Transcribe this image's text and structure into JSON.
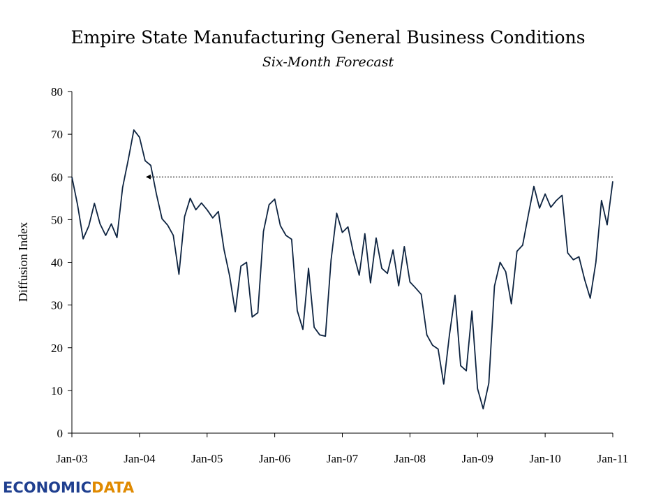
{
  "chart_data": {
    "type": "line",
    "title": "Empire State Manufacturing General Business Conditions",
    "subtitle": "Six-Month Forecast",
    "xlabel": "",
    "ylabel": "Diffusion Index",
    "ylim": [
      0,
      80
    ],
    "yticks": [
      "0",
      "10",
      "20",
      "30",
      "40",
      "50",
      "60",
      "70",
      "80"
    ],
    "xticks": [
      "Jan-03",
      "Jan-04",
      "Jan-05",
      "Jan-06",
      "Jan-07",
      "Jan-08",
      "Jan-09",
      "Jan-10",
      "Jan-11"
    ],
    "grid": false,
    "line_color": "#0d2340",
    "reference_line": {
      "value": 60,
      "from_month": 13,
      "to_month": 96
    },
    "series": [
      {
        "values": [
          60.0,
          53.5,
          45.5,
          48.5,
          53.8,
          49.0,
          46.3,
          49.0,
          45.8,
          57.5,
          64.0,
          71.0,
          69.3,
          63.8,
          62.7,
          56.0,
          50.2,
          48.7,
          46.3,
          37.2,
          50.7,
          55.0,
          52.3,
          53.9,
          52.3,
          50.4,
          51.9,
          43.0,
          36.8,
          28.4,
          39.1,
          40.0,
          27.2,
          28.2,
          47.2,
          53.5,
          54.8,
          48.6,
          46.3,
          45.4,
          28.7,
          24.3,
          38.6,
          24.8,
          23.0,
          22.7,
          40.5,
          51.5,
          47.0,
          48.3,
          42.0,
          37.0,
          46.7,
          35.2,
          45.7,
          38.6,
          37.4,
          42.9,
          34.5,
          43.7,
          35.4,
          34.0,
          32.5,
          23.0,
          20.6,
          19.7,
          11.5,
          22.9,
          32.3,
          15.8,
          14.6,
          28.6,
          10.4,
          5.7,
          11.7,
          34.4,
          40.0,
          37.8,
          30.3,
          42.6,
          44.0,
          51.0,
          57.8,
          52.7,
          56.0,
          52.9,
          54.5,
          55.7,
          42.2,
          40.6,
          41.3,
          36.0,
          31.6,
          40.0,
          54.5,
          48.8,
          59.0
        ]
      }
    ]
  },
  "logo": {
    "part1": "ECONOMIC",
    "part2": "DATA"
  }
}
